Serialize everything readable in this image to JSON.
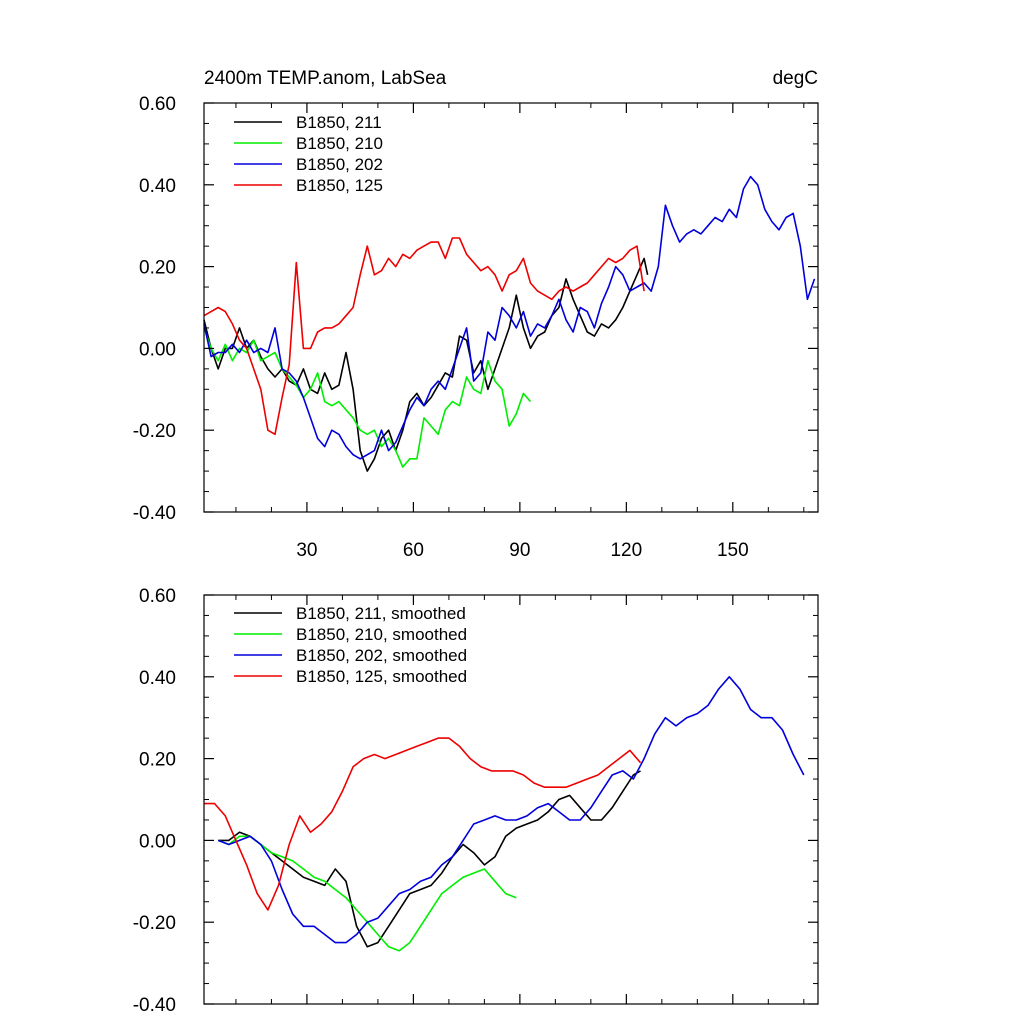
{
  "chart_data": [
    {
      "type": "line",
      "title": "2400m TEMP.anom, LabSea",
      "units": "degC",
      "xlim": [
        1,
        174
      ],
      "ylim": [
        -0.4,
        0.6
      ],
      "xticks": [
        30,
        60,
        90,
        120,
        150
      ],
      "xtick_labels": [
        "30",
        "60",
        "90",
        "120",
        "150"
      ],
      "yticks": [
        -0.4,
        -0.2,
        0.0,
        0.2,
        0.4,
        0.6
      ],
      "ytick_labels": [
        "-0.40",
        "-0.20",
        "0.00",
        "0.20",
        "0.40",
        "0.60"
      ],
      "legend_position": "top-left",
      "series": [
        {
          "name": "B1850, 211",
          "color": "#000000",
          "x": [
            1,
            3,
            5,
            7,
            9,
            11,
            13,
            15,
            17,
            19,
            21,
            23,
            25,
            27,
            29,
            31,
            33,
            35,
            37,
            39,
            41,
            43,
            45,
            47,
            49,
            51,
            53,
            55,
            57,
            59,
            61,
            63,
            65,
            67,
            69,
            71,
            73,
            75,
            77,
            79,
            81,
            83,
            85,
            87,
            89,
            91,
            93,
            95,
            97,
            99,
            101,
            103,
            105,
            107,
            109,
            111,
            113,
            115,
            117,
            119,
            121,
            123,
            125,
            126
          ],
          "values": [
            0.07,
            0.0,
            -0.05,
            0.0,
            0.0,
            0.05,
            0.0,
            0.02,
            -0.02,
            -0.05,
            -0.07,
            -0.05,
            -0.08,
            -0.09,
            -0.05,
            -0.1,
            -0.11,
            -0.06,
            -0.1,
            -0.09,
            -0.01,
            -0.1,
            -0.25,
            -0.3,
            -0.27,
            -0.22,
            -0.2,
            -0.25,
            -0.2,
            -0.13,
            -0.11,
            -0.14,
            -0.12,
            -0.09,
            -0.06,
            -0.07,
            0.03,
            0.02,
            -0.06,
            -0.03,
            -0.1,
            -0.05,
            0.0,
            0.05,
            0.13,
            0.05,
            0.0,
            0.03,
            0.04,
            0.08,
            0.1,
            0.17,
            0.12,
            0.08,
            0.04,
            0.03,
            0.06,
            0.05,
            0.07,
            0.1,
            0.14,
            0.18,
            0.22,
            0.18
          ]
        },
        {
          "name": "B1850, 210",
          "color": "#00ee00",
          "x": [
            1,
            3,
            5,
            7,
            9,
            11,
            13,
            15,
            17,
            19,
            21,
            23,
            25,
            27,
            29,
            31,
            33,
            35,
            37,
            39,
            41,
            43,
            45,
            47,
            49,
            51,
            53,
            55,
            57,
            59,
            61,
            63,
            65,
            67,
            69,
            71,
            73,
            75,
            77,
            79,
            81,
            83,
            85,
            87,
            89,
            91,
            93
          ],
          "values": [
            0.05,
            0.0,
            -0.03,
            0.01,
            -0.03,
            0.0,
            -0.01,
            0.02,
            -0.03,
            -0.02,
            -0.01,
            -0.05,
            -0.07,
            -0.09,
            -0.12,
            -0.1,
            -0.06,
            -0.13,
            -0.14,
            -0.13,
            -0.15,
            -0.17,
            -0.2,
            -0.21,
            -0.2,
            -0.24,
            -0.22,
            -0.25,
            -0.29,
            -0.27,
            -0.27,
            -0.17,
            -0.19,
            -0.21,
            -0.15,
            -0.13,
            -0.14,
            -0.07,
            -0.1,
            -0.11,
            -0.03,
            -0.08,
            -0.1,
            -0.19,
            -0.16,
            -0.11,
            -0.13
          ]
        },
        {
          "name": "B1850, 202",
          "color": "#0000dd",
          "x": [
            1,
            3,
            5,
            7,
            9,
            11,
            13,
            15,
            17,
            19,
            21,
            23,
            25,
            27,
            29,
            31,
            33,
            35,
            37,
            39,
            41,
            43,
            45,
            47,
            49,
            51,
            53,
            55,
            57,
            59,
            61,
            63,
            65,
            67,
            69,
            71,
            73,
            75,
            77,
            79,
            81,
            83,
            85,
            87,
            89,
            91,
            93,
            95,
            97,
            99,
            101,
            103,
            105,
            107,
            109,
            111,
            113,
            115,
            117,
            119,
            121,
            123,
            125,
            127,
            129,
            131,
            133,
            135,
            137,
            139,
            141,
            143,
            145,
            147,
            149,
            151,
            153,
            155,
            157,
            159,
            161,
            163,
            165,
            167,
            169,
            171,
            173
          ],
          "values": [
            0.06,
            -0.02,
            -0.01,
            -0.01,
            0.01,
            -0.01,
            0.02,
            -0.01,
            0.0,
            -0.01,
            0.05,
            -0.05,
            -0.06,
            -0.08,
            -0.12,
            -0.17,
            -0.22,
            -0.24,
            -0.2,
            -0.21,
            -0.24,
            -0.26,
            -0.27,
            -0.26,
            -0.25,
            -0.2,
            -0.25,
            -0.23,
            -0.19,
            -0.15,
            -0.12,
            -0.14,
            -0.1,
            -0.08,
            -0.1,
            -0.05,
            0.0,
            0.05,
            -0.08,
            -0.06,
            0.04,
            0.02,
            0.1,
            0.08,
            0.05,
            0.09,
            0.03,
            0.06,
            0.05,
            0.08,
            0.12,
            0.07,
            0.04,
            0.1,
            0.09,
            0.05,
            0.11,
            0.15,
            0.2,
            0.18,
            0.14,
            0.15,
            0.16,
            0.14,
            0.2,
            0.35,
            0.3,
            0.26,
            0.28,
            0.29,
            0.28,
            0.3,
            0.32,
            0.31,
            0.34,
            0.32,
            0.39,
            0.42,
            0.4,
            0.34,
            0.31,
            0.29,
            0.32,
            0.33,
            0.25,
            0.12,
            0.17
          ]
        },
        {
          "name": "B1850, 125",
          "color": "#ee0000",
          "x": [
            1,
            3,
            5,
            7,
            9,
            11,
            13,
            15,
            17,
            19,
            21,
            23,
            25,
            27,
            29,
            31,
            33,
            35,
            37,
            39,
            41,
            43,
            45,
            47,
            49,
            51,
            53,
            55,
            57,
            59,
            61,
            63,
            65,
            67,
            69,
            71,
            73,
            75,
            77,
            79,
            81,
            83,
            85,
            87,
            89,
            91,
            93,
            95,
            97,
            99,
            101,
            103,
            105,
            107,
            109,
            111,
            113,
            115,
            117,
            119,
            121,
            123,
            125
          ],
          "values": [
            0.08,
            0.09,
            0.1,
            0.09,
            0.06,
            0.02,
            0.0,
            -0.05,
            -0.1,
            -0.2,
            -0.21,
            -0.12,
            -0.04,
            0.21,
            0.0,
            0.0,
            0.04,
            0.05,
            0.05,
            0.06,
            0.08,
            0.1,
            0.18,
            0.25,
            0.18,
            0.19,
            0.22,
            0.2,
            0.23,
            0.22,
            0.24,
            0.25,
            0.26,
            0.26,
            0.22,
            0.27,
            0.27,
            0.23,
            0.21,
            0.19,
            0.2,
            0.18,
            0.14,
            0.18,
            0.19,
            0.22,
            0.16,
            0.14,
            0.13,
            0.12,
            0.14,
            0.15,
            0.14,
            0.15,
            0.16,
            0.18,
            0.2,
            0.22,
            0.21,
            0.22,
            0.24,
            0.25,
            0.14
          ]
        }
      ]
    },
    {
      "type": "line",
      "title": "",
      "units": "",
      "xlim": [
        1,
        174
      ],
      "ylim": [
        -0.4,
        0.6
      ],
      "xticks": [
        30,
        60,
        90,
        120,
        150
      ],
      "xtick_labels": [],
      "yticks": [
        -0.4,
        -0.2,
        0.0,
        0.2,
        0.4,
        0.6
      ],
      "ytick_labels": [
        "-0.40",
        "-0.20",
        "0.00",
        "0.20",
        "0.40",
        "0.60"
      ],
      "legend_position": "top-left",
      "series": [
        {
          "name": "B1850, 211, smoothed",
          "color": "#000000",
          "x": [
            5,
            8,
            11,
            14,
            17,
            20,
            23,
            26,
            29,
            32,
            35,
            38,
            41,
            44,
            47,
            50,
            53,
            56,
            59,
            62,
            65,
            68,
            71,
            74,
            77,
            80,
            83,
            86,
            89,
            92,
            95,
            98,
            101,
            104,
            107,
            110,
            113,
            116,
            119,
            122,
            124
          ],
          "values": [
            0.0,
            0.0,
            0.02,
            0.01,
            -0.01,
            -0.03,
            -0.05,
            -0.07,
            -0.09,
            -0.1,
            -0.11,
            -0.07,
            -0.1,
            -0.21,
            -0.26,
            -0.25,
            -0.21,
            -0.17,
            -0.13,
            -0.12,
            -0.11,
            -0.08,
            -0.04,
            -0.01,
            -0.03,
            -0.06,
            -0.04,
            0.01,
            0.03,
            0.04,
            0.05,
            0.07,
            0.1,
            0.11,
            0.08,
            0.05,
            0.05,
            0.08,
            0.12,
            0.16,
            0.17
          ]
        },
        {
          "name": "B1850, 210, smoothed",
          "color": "#00ee00",
          "x": [
            5,
            8,
            11,
            14,
            17,
            20,
            23,
            26,
            29,
            32,
            35,
            38,
            41,
            44,
            47,
            50,
            53,
            56,
            59,
            62,
            65,
            68,
            71,
            74,
            77,
            80,
            83,
            86,
            89
          ],
          "values": [
            0.0,
            -0.01,
            0.01,
            0.01,
            -0.01,
            -0.03,
            -0.04,
            -0.05,
            -0.07,
            -0.09,
            -0.1,
            -0.12,
            -0.14,
            -0.17,
            -0.2,
            -0.23,
            -0.26,
            -0.27,
            -0.25,
            -0.21,
            -0.17,
            -0.13,
            -0.11,
            -0.09,
            -0.08,
            -0.07,
            -0.1,
            -0.13,
            -0.14
          ]
        },
        {
          "name": "B1850, 202, smoothed",
          "color": "#0000dd",
          "x": [
            5,
            8,
            11,
            14,
            17,
            20,
            23,
            26,
            29,
            32,
            35,
            38,
            41,
            44,
            47,
            50,
            53,
            56,
            59,
            62,
            65,
            68,
            71,
            74,
            77,
            80,
            83,
            86,
            89,
            92,
            95,
            98,
            101,
            104,
            107,
            110,
            113,
            116,
            119,
            122,
            125,
            128,
            131,
            134,
            137,
            140,
            143,
            146,
            149,
            152,
            155,
            158,
            161,
            164,
            167,
            170
          ],
          "values": [
            0.0,
            -0.01,
            0.0,
            0.01,
            -0.01,
            -0.05,
            -0.12,
            -0.18,
            -0.21,
            -0.21,
            -0.23,
            -0.25,
            -0.25,
            -0.23,
            -0.2,
            -0.19,
            -0.16,
            -0.13,
            -0.12,
            -0.1,
            -0.09,
            -0.06,
            -0.04,
            0.0,
            0.04,
            0.05,
            0.06,
            0.05,
            0.05,
            0.06,
            0.08,
            0.09,
            0.07,
            0.05,
            0.05,
            0.08,
            0.12,
            0.16,
            0.17,
            0.15,
            0.2,
            0.26,
            0.3,
            0.28,
            0.3,
            0.31,
            0.33,
            0.37,
            0.4,
            0.37,
            0.32,
            0.3,
            0.3,
            0.27,
            0.21,
            0.16
          ]
        },
        {
          "name": "B1850, 125, smoothed",
          "color": "#ee0000",
          "x": [
            1,
            4,
            7,
            10,
            13,
            16,
            19,
            22,
            25,
            28,
            31,
            34,
            37,
            40,
            43,
            46,
            49,
            52,
            55,
            58,
            61,
            64,
            67,
            70,
            73,
            76,
            79,
            82,
            85,
            88,
            91,
            94,
            97,
            100,
            103,
            106,
            109,
            112,
            115,
            118,
            121,
            124
          ],
          "values": [
            0.09,
            0.09,
            0.06,
            0.0,
            -0.06,
            -0.13,
            -0.17,
            -0.11,
            -0.01,
            0.06,
            0.02,
            0.04,
            0.07,
            0.12,
            0.18,
            0.2,
            0.21,
            0.2,
            0.21,
            0.22,
            0.23,
            0.24,
            0.25,
            0.25,
            0.23,
            0.2,
            0.18,
            0.17,
            0.17,
            0.17,
            0.16,
            0.14,
            0.13,
            0.13,
            0.13,
            0.14,
            0.15,
            0.16,
            0.18,
            0.2,
            0.22,
            0.19
          ]
        }
      ]
    }
  ]
}
